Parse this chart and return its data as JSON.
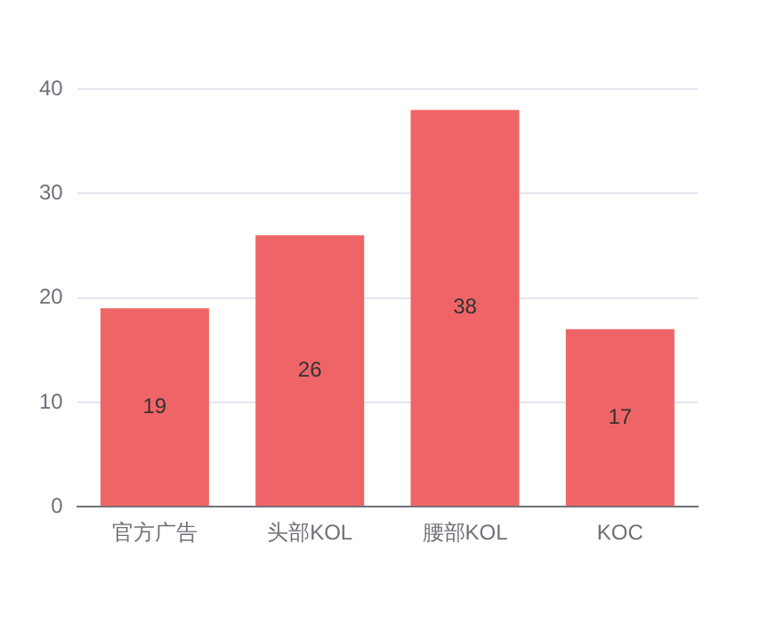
{
  "chart_data": {
    "type": "bar",
    "categories": [
      "官方广告",
      "头部KOL",
      "腰部KOL",
      "KOC"
    ],
    "values": [
      19,
      26,
      38,
      17
    ],
    "color": "#ef6567",
    "ylim": [
      0,
      40
    ],
    "yticks": [
      0,
      10,
      20,
      30,
      40
    ],
    "grid": "y",
    "data_labels": true
  }
}
